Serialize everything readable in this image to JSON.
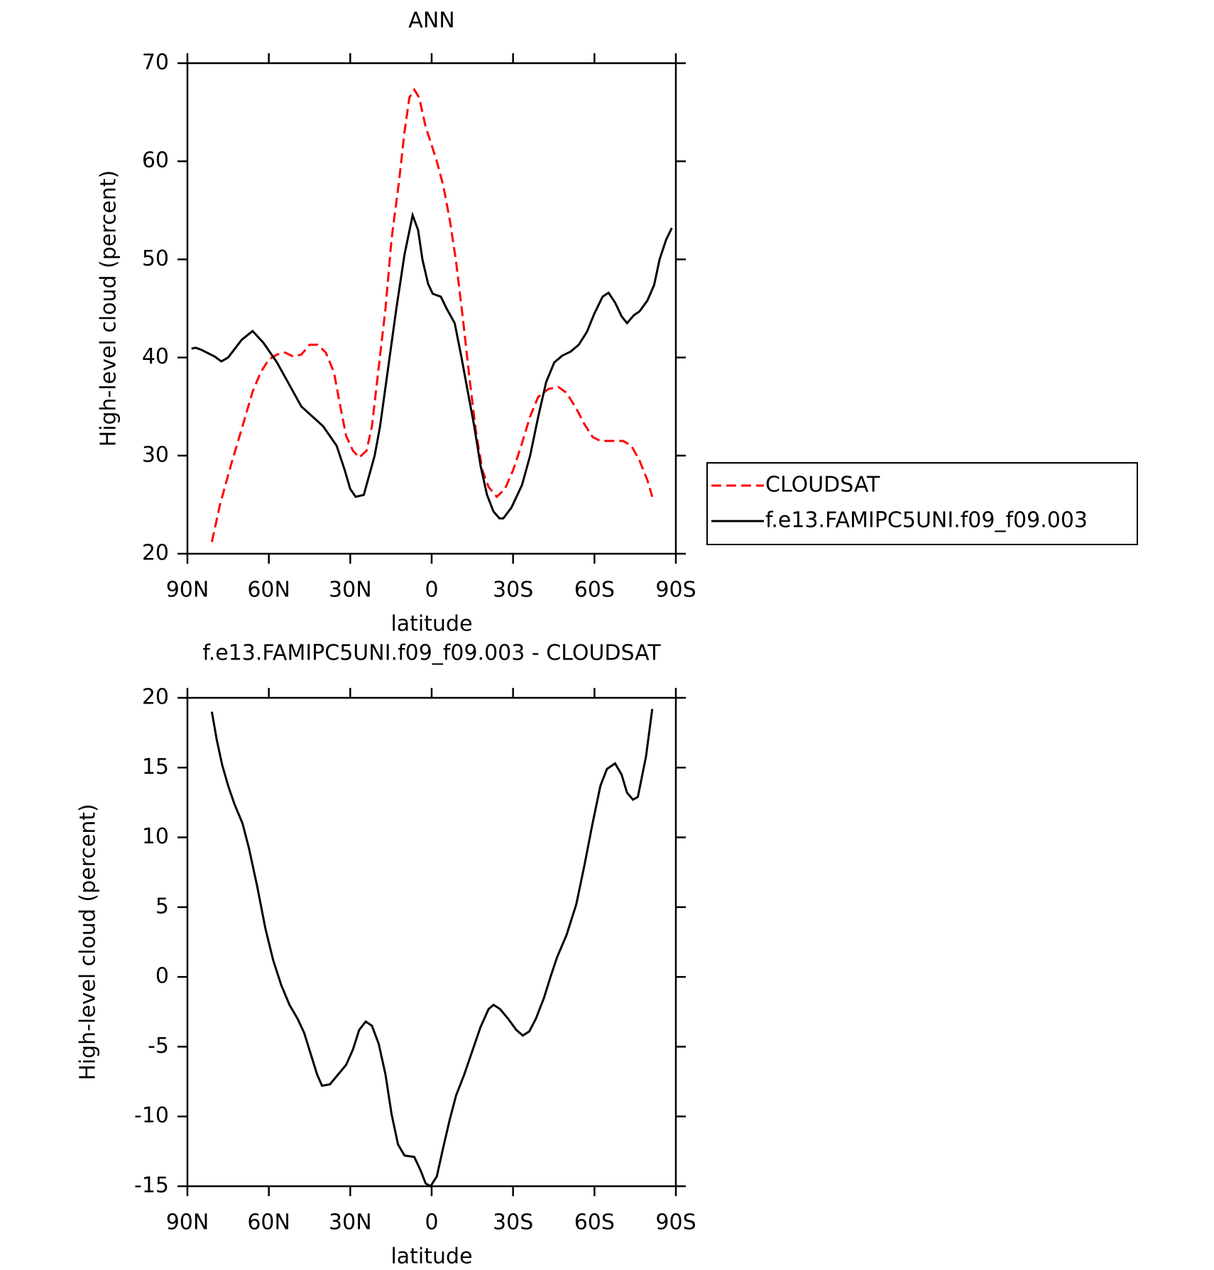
{
  "chart_data": [
    {
      "type": "line",
      "title": "ANN",
      "xlabel": "latitude",
      "ylabel": "High-level cloud (percent)",
      "xlim": [
        90,
        -90
      ],
      "xticks": [
        {
          "value": 90,
          "label": "90N"
        },
        {
          "value": 60,
          "label": "60N"
        },
        {
          "value": 30,
          "label": "30N"
        },
        0,
        {
          "value": -30,
          "label": "30S"
        },
        {
          "value": -60,
          "label": "60S"
        },
        {
          "value": -90,
          "label": "90S"
        }
      ],
      "ylim": [
        20,
        70
      ],
      "yticks": [
        20,
        30,
        40,
        50,
        60,
        70
      ],
      "legend": "right",
      "series": [
        {
          "name": "CLOUDSAT",
          "color": "#ff0000",
          "dash": "dashed",
          "x": [
            81,
            78,
            74,
            69.7,
            66,
            63,
            60,
            57,
            54,
            51,
            48,
            45,
            42,
            39,
            36,
            34,
            31.5,
            29,
            26.7,
            24,
            22,
            19.5,
            17,
            14.8,
            12,
            10,
            8.2,
            6.4,
            4.6,
            2.2,
            0.4,
            -1.9,
            -4.3,
            -6.7,
            -9,
            -11.5,
            -13.9,
            -16.3,
            -18.7,
            -21,
            -24,
            -27,
            -30,
            -33,
            -36.3,
            -39.3,
            -43.1,
            -46.7,
            -49.7,
            -53.3,
            -56.3,
            -59.3,
            -62.2,
            -66.1,
            -70.6,
            -73.6,
            -76.6,
            -79.5,
            -81.3
          ],
          "values": [
            21.2,
            25,
            29,
            33,
            36.5,
            38.5,
            39.8,
            40.3,
            40.5,
            40.1,
            40.3,
            41.3,
            41.3,
            40.5,
            38.5,
            35.5,
            32,
            30.5,
            29.8,
            30.5,
            33,
            39,
            45,
            52,
            58,
            63,
            66.5,
            67.3,
            66.5,
            63.5,
            62,
            60,
            57.5,
            54,
            49.8,
            44,
            38,
            32.5,
            28.5,
            26.8,
            25.8,
            26.6,
            28.5,
            31,
            34,
            36,
            36.8,
            37,
            36.4,
            34.8,
            33.2,
            31.9,
            31.5,
            31.5,
            31.5,
            31,
            29.5,
            27.5,
            25.8
          ]
        },
        {
          "name": "f.e13.FAMIPC5UNI.f09_f09.003",
          "color": "#000000",
          "dash": "solid",
          "x": [
            88.5,
            87,
            85,
            80,
            77.5,
            75,
            70,
            66,
            62,
            57,
            52,
            48,
            44,
            40,
            35,
            32,
            30,
            28,
            25,
            23,
            21,
            19,
            16,
            13,
            10,
            7,
            5,
            3.4,
            1.3,
            -0.4,
            -3.4,
            -5.5,
            -8.5,
            -11,
            -13,
            -15.7,
            -18,
            -20.4,
            -22.8,
            -25,
            -26.4,
            -29.4,
            -33.3,
            -36.3,
            -39.3,
            -42.2,
            -45.2,
            -48.2,
            -51.2,
            -54.2,
            -57.2,
            -60,
            -63,
            -65.2,
            -67.6,
            -70,
            -72,
            -74.5,
            -76.6,
            -79.5,
            -82,
            -84,
            -86.4,
            -88.5
          ],
          "values": [
            40.9,
            41,
            40.8,
            40.1,
            39.6,
            40,
            41.8,
            42.7,
            41.5,
            39.5,
            37,
            35,
            34,
            33,
            31,
            28.5,
            26.6,
            25.8,
            26,
            28,
            30,
            33,
            39,
            45,
            50.5,
            54.5,
            53,
            50,
            47.5,
            46.5,
            46.2,
            45,
            43.5,
            40,
            37,
            33,
            29,
            26,
            24.3,
            23.6,
            23.6,
            24.7,
            27,
            30,
            34,
            37.5,
            39.5,
            40.2,
            40.6,
            41.3,
            42.6,
            44.5,
            46.2,
            46.6,
            45.6,
            44.2,
            43.5,
            44.3,
            44.7,
            45.8,
            47.4,
            50,
            52,
            53.2
          ]
        }
      ]
    },
    {
      "type": "line",
      "title": "f.e13.FAMIPC5UNI.f09_f09.003 - CLOUDSAT",
      "xlabel": "latitude",
      "ylabel": "High-level cloud (percent)",
      "xlim": [
        90,
        -90
      ],
      "xticks": [
        {
          "value": 90,
          "label": "90N"
        },
        {
          "value": 60,
          "label": "60N"
        },
        {
          "value": 30,
          "label": "30N"
        },
        0,
        {
          "value": -30,
          "label": "30S"
        },
        {
          "value": -60,
          "label": "60S"
        },
        {
          "value": -90,
          "label": "90S"
        }
      ],
      "ylim": [
        -15,
        20
      ],
      "yticks": [
        -15,
        -10,
        -5,
        0,
        5,
        10,
        15,
        20
      ],
      "series": [
        {
          "color": "#000000",
          "dash": "solid",
          "x": [
            81,
            79.2,
            77.2,
            75,
            72.7,
            69.7,
            67.3,
            64.3,
            61.3,
            58.4,
            55.4,
            52.4,
            49.4,
            47,
            44.6,
            42.2,
            40.4,
            37.5,
            34.5,
            31.5,
            29,
            26.7,
            24.3,
            22,
            19.5,
            17,
            14.8,
            12.4,
            10,
            6.4,
            4,
            2.2,
            0.4,
            -1.9,
            -4.3,
            -6.7,
            -9,
            -12,
            -15,
            -18,
            -21,
            -22.8,
            -25.2,
            -28.2,
            -31.2,
            -33.6,
            -36,
            -38.4,
            -41.4,
            -43.8,
            -46.2,
            -49.7,
            -53.3,
            -56.3,
            -59.3,
            -62.2,
            -64.6,
            -67.6,
            -70,
            -72,
            -74.2,
            -76,
            -79,
            -81.3
          ],
          "values": [
            19,
            17,
            15.2,
            13.7,
            12.4,
            11,
            9.2,
            6.5,
            3.5,
            1.2,
            -0.6,
            -2,
            -3,
            -4,
            -5.5,
            -7,
            -7.8,
            -7.7,
            -7,
            -6.3,
            -5.2,
            -3.8,
            -3.2,
            -3.5,
            -4.8,
            -7,
            -9.8,
            -12,
            -12.8,
            -12.9,
            -13.9,
            -14.8,
            -15,
            -14.3,
            -12.2,
            -10.2,
            -8.5,
            -7,
            -5.3,
            -3.6,
            -2.3,
            -2,
            -2.3,
            -3,
            -3.8,
            -4.2,
            -3.9,
            -3,
            -1.5,
            0,
            1.4,
            3,
            5.2,
            8,
            11,
            13.7,
            14.9,
            15.3,
            14.5,
            13.2,
            12.7,
            12.9,
            15.8,
            19.2
          ]
        }
      ]
    }
  ]
}
